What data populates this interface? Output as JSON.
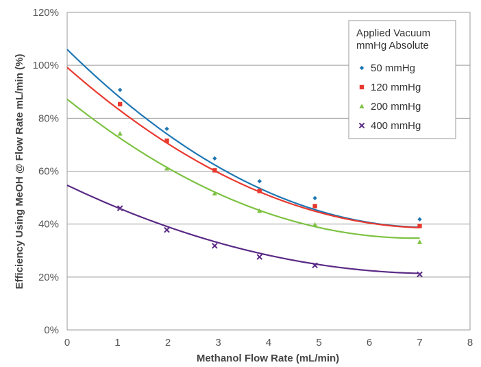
{
  "chart_data": {
    "type": "scatter",
    "xlabel": "Methanol Flow Rate (mL/min)",
    "ylabel": "Efficiency Using MeOH @ Flow Rate mL/min (%)",
    "xlim": [
      0,
      8
    ],
    "ylim": [
      0,
      120
    ],
    "x_ticks": [
      0,
      1,
      2,
      3,
      4,
      5,
      6,
      7,
      8
    ],
    "y_ticks": [
      0,
      20,
      40,
      60,
      80,
      100,
      120
    ],
    "y_tick_suffix": "%",
    "grid": "horizontal",
    "legend": {
      "placement": "top-right",
      "title_lines": [
        "Applied Vacuum",
        "mmHg Absolute"
      ]
    },
    "series": [
      {
        "name": "50 mmHg",
        "color": "#1f77b4",
        "marker": "diamond",
        "x": [
          1.05,
          1.98,
          2.93,
          3.82,
          4.92,
          7.0
        ],
        "y": [
          90.7,
          76.0,
          64.8,
          56.2,
          49.8,
          41.8
        ],
        "trend": [
          106,
          -18.7,
          1.3
        ]
      },
      {
        "name": "120 mmHg",
        "color": "#e8392e",
        "marker": "square",
        "x": [
          1.05,
          1.98,
          2.93,
          3.82,
          4.92,
          7.0
        ],
        "y": [
          85.3,
          71.5,
          60.3,
          52.5,
          46.8,
          39.3
        ],
        "trend": [
          99.2,
          -16.7,
          1.15
        ]
      },
      {
        "name": "200 mmHg",
        "color": "#7dc242",
        "marker": "triangle",
        "x": [
          1.05,
          1.98,
          2.93,
          3.82,
          4.92,
          7.0
        ],
        "y": [
          74.2,
          61.0,
          51.6,
          45.0,
          39.8,
          33.2
        ],
        "trend": [
          87.2,
          -15.2,
          1.1
        ]
      },
      {
        "name": "400 mmHg",
        "color": "#5b2a86",
        "marker": "x",
        "x": [
          1.05,
          1.98,
          2.93,
          3.82,
          4.92,
          7.0
        ],
        "y": [
          46.0,
          37.8,
          31.8,
          27.6,
          24.4,
          21.0
        ],
        "trend": [
          54.7,
          -9.1,
          0.62
        ]
      }
    ]
  }
}
